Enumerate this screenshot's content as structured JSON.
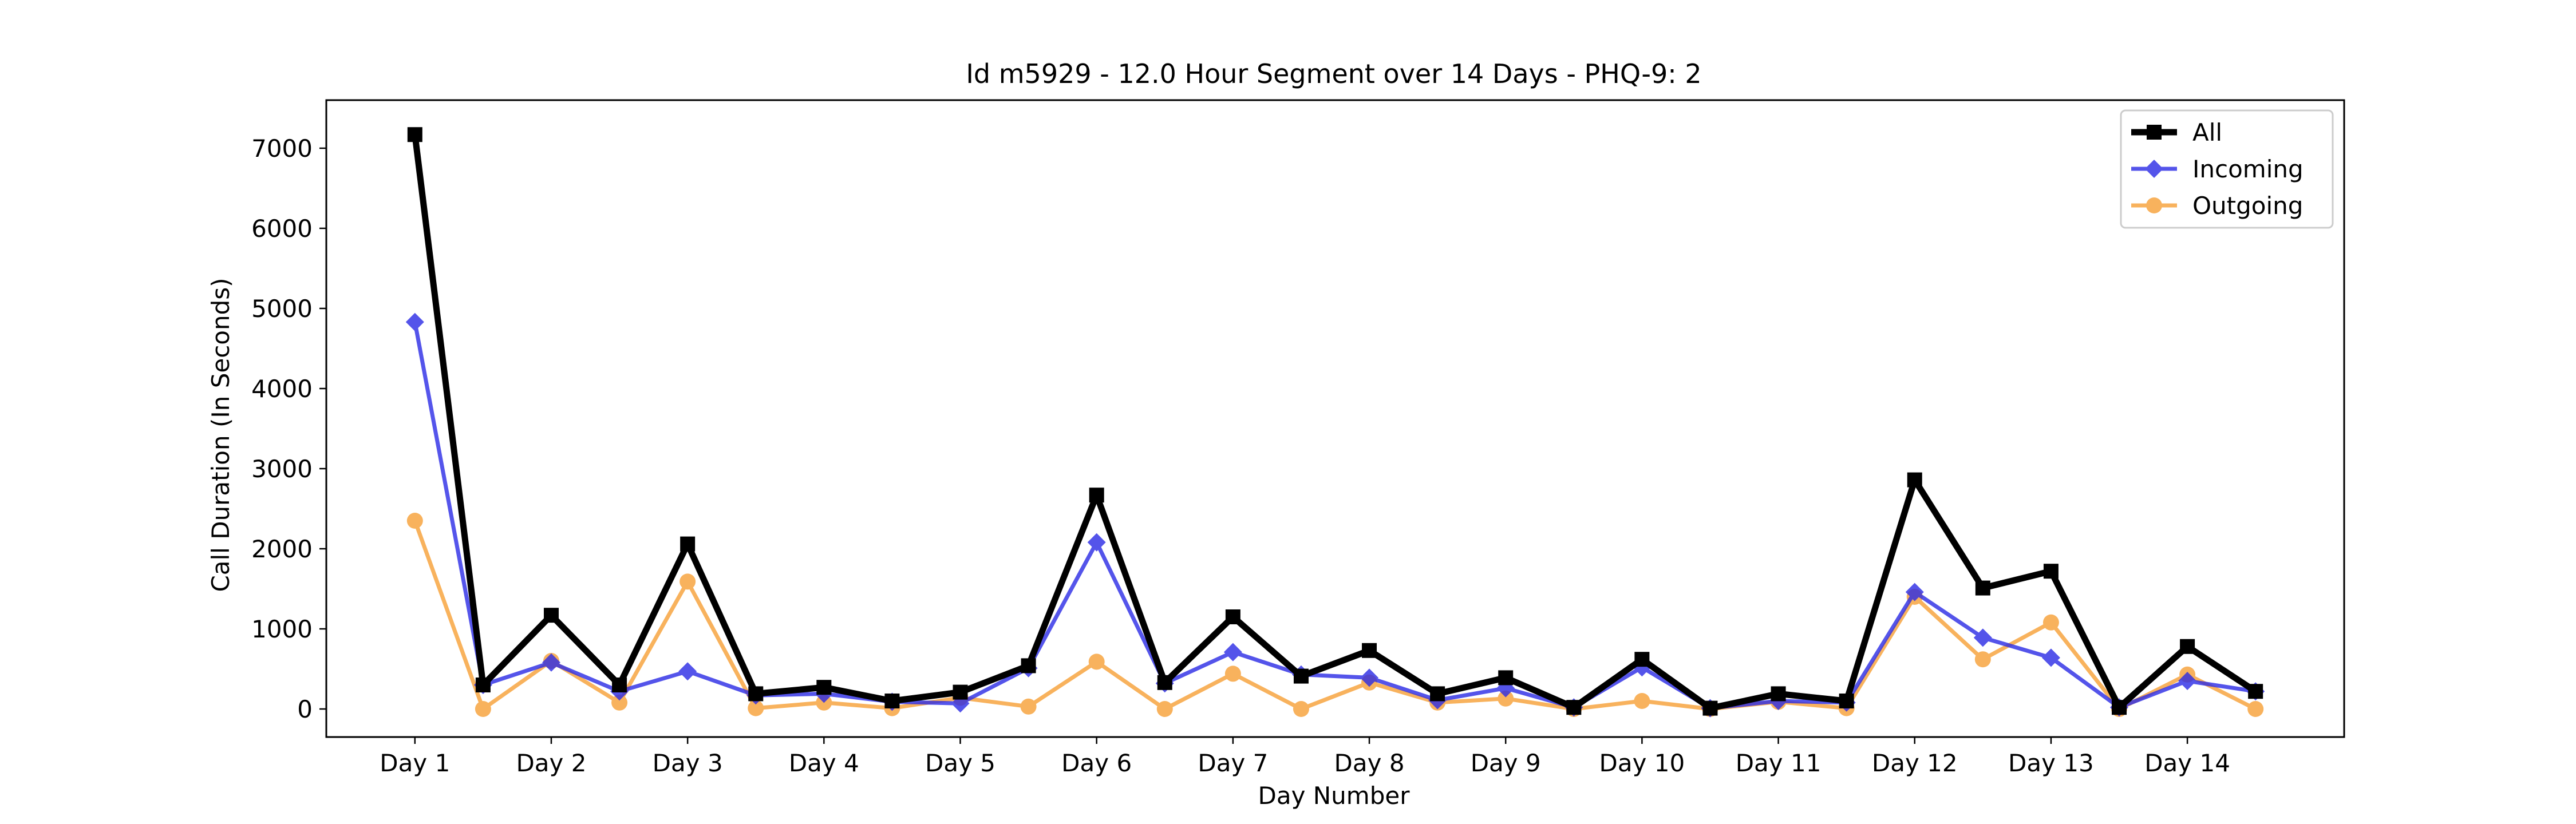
{
  "chart_data": {
    "type": "line",
    "title": "Id m5929 - 12.0 Hour Segment over 14 Days - PHQ-9: 2",
    "xlabel": "Day Number",
    "ylabel": "Call Duration (In Seconds)",
    "categories": [
      "Day 1",
      "Day 2",
      "Day 3",
      "Day 4",
      "Day 5",
      "Day 6",
      "Day 7",
      "Day 8",
      "Day 9",
      "Day 10",
      "Day 11",
      "Day 12",
      "Day 13",
      "Day 14"
    ],
    "x": [
      0,
      0.5,
      1,
      1.5,
      2,
      2.5,
      3,
      3.5,
      4,
      4.5,
      5,
      5.5,
      6,
      6.5,
      7,
      7.5,
      8,
      8.5,
      9,
      9.5,
      10,
      10.5,
      11,
      11.5,
      12,
      12.5,
      13,
      13.5
    ],
    "xlim": [
      -0.65,
      14.15
    ],
    "ylim": [
      -350,
      7600
    ],
    "yticks": [
      0,
      1000,
      2000,
      3000,
      4000,
      5000,
      6000,
      7000
    ],
    "grid": false,
    "legend_position": "top-right",
    "series": [
      {
        "name": "All",
        "color": "#000000",
        "marker": "square",
        "values": [
          7170,
          300,
          1170,
          300,
          2060,
          190,
          270,
          100,
          210,
          540,
          2670,
          330,
          1150,
          410,
          730,
          190,
          390,
          20,
          620,
          10,
          190,
          100,
          2860,
          1510,
          1720,
          20,
          780,
          220
        ]
      },
      {
        "name": "Incoming",
        "color": "#2a2ae6",
        "marker": "diamond",
        "values": [
          4830,
          300,
          580,
          220,
          470,
          170,
          190,
          90,
          70,
          510,
          2080,
          320,
          710,
          430,
          390,
          110,
          260,
          20,
          520,
          10,
          100,
          80,
          1460,
          890,
          640,
          20,
          350,
          220
        ]
      },
      {
        "name": "Outgoing",
        "color": "#f7a035",
        "marker": "circle",
        "values": [
          2350,
          0,
          600,
          80,
          1590,
          10,
          80,
          10,
          140,
          30,
          590,
          0,
          440,
          0,
          330,
          80,
          130,
          0,
          100,
          0,
          90,
          10,
          1400,
          620,
          1080,
          0,
          430,
          0
        ]
      }
    ]
  }
}
